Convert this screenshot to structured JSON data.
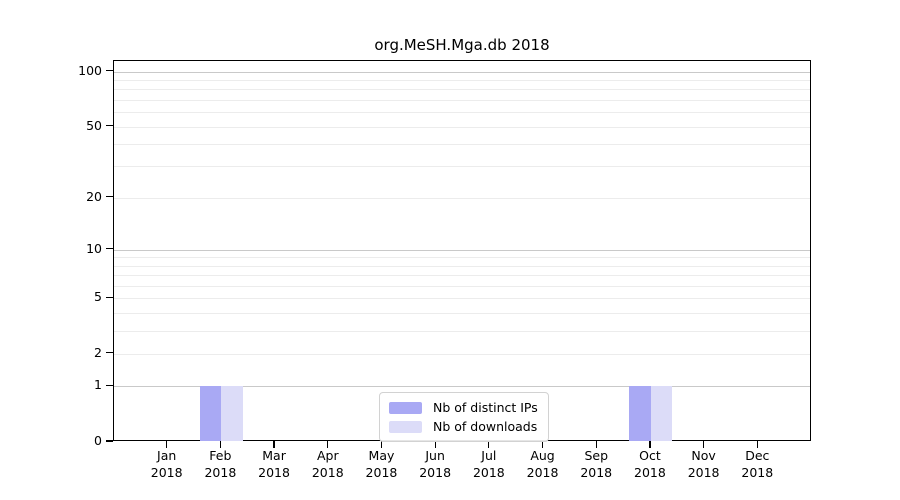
{
  "title": "org.MeSH.Mga.db 2018",
  "colors": {
    "distinct_ips": "#a9a9f4",
    "downloads": "#dcdcf8",
    "grid_major": "#c9c9c9",
    "grid_minor": "#ececec",
    "axis": "#000000",
    "background": "#ffffff"
  },
  "legend": {
    "items": [
      {
        "label": "Nb of distinct IPs",
        "color_key": "distinct_ips"
      },
      {
        "label": "Nb of downloads",
        "color_key": "downloads"
      }
    ]
  },
  "chart_data": {
    "type": "bar",
    "title": "org.MeSH.Mga.db 2018",
    "categories": [
      "Jan",
      "Feb",
      "Mar",
      "Apr",
      "May",
      "Jun",
      "Jul",
      "Aug",
      "Sep",
      "Oct",
      "Nov",
      "Dec"
    ],
    "category_year": "2018",
    "series": [
      {
        "name": "Nb of distinct IPs",
        "values": [
          0,
          1,
          0,
          0,
          0,
          0,
          0,
          0,
          0,
          1,
          0,
          0
        ]
      },
      {
        "name": "Nb of downloads",
        "values": [
          0,
          1,
          0,
          0,
          0,
          0,
          0,
          0,
          0,
          1,
          0,
          0
        ]
      }
    ],
    "xlabel": "",
    "ylabel": "",
    "yscale": "log1p",
    "ylim": [
      0,
      115
    ],
    "yticks": [
      0,
      1,
      2,
      5,
      10,
      20,
      50,
      100
    ],
    "grid_minor_values": [
      2,
      3,
      4,
      5,
      6,
      7,
      8,
      9,
      20,
      30,
      40,
      50,
      60,
      70,
      80,
      90
    ],
    "grid_major_values": [
      1,
      10,
      100
    ],
    "grid": "horizontal",
    "legend_position": "inside-bottom-center"
  }
}
